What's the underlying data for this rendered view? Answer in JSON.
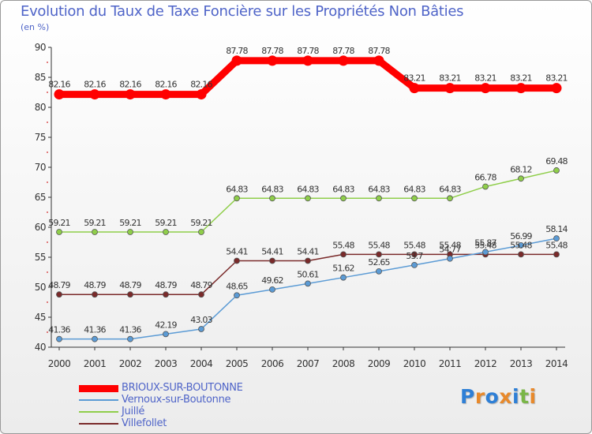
{
  "chart_data": {
    "type": "line",
    "title": "Evolution du Taux de Taxe Foncière sur les Propriétés Non Bâties",
    "ylabel": "(en %)",
    "xlabel": "",
    "ylim": [
      40,
      90
    ],
    "yticks": [
      40,
      45,
      50,
      55,
      60,
      65,
      70,
      75,
      80,
      85,
      90
    ],
    "categories": [
      "2000",
      "2001",
      "2002",
      "2003",
      "2004",
      "2005",
      "2006",
      "2007",
      "2008",
      "2009",
      "2010",
      "2011",
      "2012",
      "2013",
      "2014"
    ],
    "series": [
      {
        "name": "BRIOUX-SUR-BOUTONNE",
        "color": "#ff0000",
        "values": [
          82.16,
          82.16,
          82.16,
          82.16,
          82.16,
          87.78,
          87.78,
          87.78,
          87.78,
          87.78,
          83.21,
          83.21,
          83.21,
          83.21,
          83.21
        ]
      },
      {
        "name": "Vernoux-sur-Boutonne",
        "color": "#5b9bd5",
        "values": [
          41.36,
          41.36,
          41.36,
          42.19,
          43.03,
          48.65,
          49.62,
          50.61,
          51.62,
          52.65,
          53.7,
          54.77,
          55.87,
          56.99,
          58.14
        ]
      },
      {
        "name": "Juillé",
        "color": "#8fce4a",
        "values": [
          59.21,
          59.21,
          59.21,
          59.21,
          59.21,
          64.83,
          64.83,
          64.83,
          64.83,
          64.83,
          64.83,
          64.83,
          66.78,
          68.12,
          69.48
        ]
      },
      {
        "name": "Villefollet",
        "color": "#7a2a2a",
        "values": [
          48.79,
          48.79,
          48.79,
          48.79,
          48.79,
          54.41,
          54.41,
          54.41,
          55.48,
          55.48,
          55.48,
          55.48,
          55.48,
          55.48,
          55.48
        ]
      }
    ],
    "grid": false,
    "legend": "bottom-left"
  },
  "brand": {
    "text": "Proxiti",
    "letter_colors": [
      "#2e7fd6",
      "#e8892b",
      "#2e7fd6",
      "#e8892b",
      "#2e7fd6",
      "#7ab648",
      "#e8892b"
    ]
  }
}
